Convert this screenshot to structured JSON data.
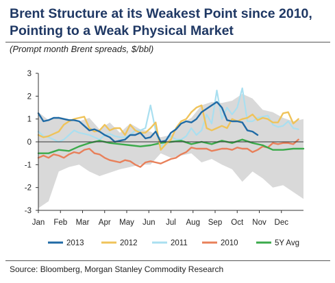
{
  "header": {
    "title_line1": "Brent Structure at its Weakest Point since 2010,",
    "title_line2": "Pointing to a Weak Physical Market",
    "subtitle": "(Prompt month Brent spreads, $/bbl)"
  },
  "footer": {
    "source": "Source: Bloomberg, Morgan Stanley Commodity Research"
  },
  "chart_data": {
    "type": "line",
    "title": "Brent Structure at its Weakest Point since 2010, Pointing to a Weak Physical Market",
    "subtitle": "(Prompt month Brent spreads, $/bbl)",
    "xlabel": "",
    "ylabel": "",
    "x_months": [
      "Jan",
      "Feb",
      "Mar",
      "Apr",
      "May",
      "Jun",
      "Jul",
      "Aug",
      "Sep",
      "Oct",
      "Nov",
      "Dec"
    ],
    "xlim": [
      0,
      52
    ],
    "ylim": [
      -3,
      3
    ],
    "yticks": [
      "-3",
      "-2",
      "-1",
      "0",
      "1",
      "2",
      "3"
    ],
    "grid": false,
    "legend_position": "bottom",
    "colors": {
      "2013": "#1f6aa5",
      "2012": "#efc35a",
      "2011": "#a9dff0",
      "2010": "#e8805a",
      "5Y Avg": "#3aaa4a",
      "range": "#d9d9d9",
      "axis": "#333333"
    },
    "range_band": {
      "name": "5Y range",
      "x": [
        0,
        2,
        4,
        6,
        8,
        10,
        12,
        14,
        16,
        18,
        20,
        22,
        24,
        26,
        28,
        30,
        32,
        34,
        36,
        38,
        40,
        42,
        44,
        46,
        48,
        50,
        52
      ],
      "upper": [
        1.3,
        0.95,
        1.1,
        1.0,
        0.9,
        1.05,
        0.55,
        0.85,
        0.4,
        0.8,
        0.55,
        0.45,
        0.2,
        0.3,
        0.8,
        1.05,
        1.6,
        1.75,
        1.7,
        1.8,
        2.1,
        1.9,
        1.4,
        1.3,
        1.05,
        0.9,
        1.0
      ],
      "lower": [
        -2.9,
        -2.6,
        -1.3,
        -1.1,
        -1.0,
        -1.3,
        -1.5,
        -1.35,
        -1.2,
        -1.1,
        -1.0,
        -1.0,
        -0.5,
        -0.7,
        -0.6,
        -0.5,
        -0.9,
        -0.75,
        -1.0,
        -1.2,
        -1.75,
        -1.3,
        -1.6,
        -2.0,
        -1.9,
        -2.2,
        -2.5
      ]
    },
    "series": [
      {
        "name": "2013",
        "x": [
          0,
          1,
          2,
          3,
          4,
          5,
          6,
          7,
          8,
          9,
          10,
          11,
          12,
          13,
          14,
          15,
          16,
          17,
          18,
          19,
          20,
          21,
          22,
          23,
          24,
          25,
          26,
          27,
          28,
          29,
          30,
          31,
          32,
          33,
          34,
          35,
          36,
          37,
          38,
          39,
          40,
          41,
          42,
          43
        ],
        "values": [
          1.25,
          0.9,
          0.95,
          1.05,
          1.05,
          1.0,
          0.95,
          0.95,
          0.9,
          0.7,
          0.5,
          0.55,
          0.45,
          0.3,
          0.2,
          0.0,
          0.05,
          0.1,
          0.3,
          0.3,
          0.4,
          0.15,
          0.2,
          0.45,
          0.0,
          0.05,
          0.4,
          0.55,
          0.8,
          0.9,
          0.85,
          1.0,
          1.3,
          1.45,
          1.6,
          1.75,
          1.5,
          0.95,
          0.9,
          0.9,
          0.85,
          0.5,
          0.45,
          0.3
        ]
      },
      {
        "name": "2012",
        "x": [
          0,
          1,
          2,
          3,
          4,
          5,
          6,
          7,
          8,
          9,
          10,
          11,
          12,
          13,
          14,
          15,
          16,
          17,
          18,
          19,
          20,
          21,
          22,
          23,
          24,
          25,
          26,
          27,
          28,
          29,
          30,
          31,
          32,
          33,
          34,
          35,
          36,
          37,
          38,
          39,
          40,
          41,
          42,
          43,
          44,
          45,
          46,
          47,
          48,
          49,
          50,
          51
        ],
        "values": [
          0.3,
          0.2,
          0.25,
          0.35,
          0.45,
          0.75,
          0.9,
          1.0,
          1.05,
          1.1,
          0.6,
          0.45,
          0.5,
          0.75,
          0.5,
          0.6,
          0.6,
          0.3,
          0.75,
          0.5,
          0.4,
          0.4,
          0.6,
          0.85,
          -0.35,
          -0.1,
          0.1,
          0.6,
          0.9,
          1.0,
          1.3,
          1.5,
          1.6,
          0.6,
          0.5,
          0.6,
          0.7,
          0.6,
          1.0,
          0.9,
          1.0,
          1.05,
          1.2,
          0.95,
          1.05,
          1.0,
          0.85,
          0.85,
          1.25,
          1.3,
          0.8,
          1.0
        ]
      },
      {
        "name": "2011",
        "x": [
          0,
          1,
          2,
          3,
          4,
          5,
          6,
          7,
          8,
          9,
          10,
          11,
          12,
          13,
          14,
          15,
          16,
          17,
          18,
          19,
          20,
          21,
          22,
          23,
          24,
          25,
          26,
          27,
          28,
          29,
          30,
          31,
          32,
          33,
          34,
          35,
          36,
          37,
          38,
          39,
          40,
          41,
          42,
          43,
          44,
          45,
          46,
          47,
          48,
          49,
          50,
          51
        ],
        "values": [
          0.45,
          0.25,
          0.2,
          0.1,
          0.0,
          0.1,
          0.3,
          0.5,
          0.4,
          0.35,
          0.3,
          0.2,
          0.1,
          0.3,
          0.35,
          0.25,
          0.2,
          0.2,
          0.3,
          0.5,
          0.5,
          0.6,
          1.6,
          0.5,
          -0.25,
          0.1,
          0.25,
          0.1,
          0.1,
          0.25,
          0.6,
          0.3,
          0.5,
          1.2,
          0.8,
          2.25,
          1.0,
          1.5,
          1.2,
          1.5,
          2.35,
          0.9,
          0.9,
          1.05,
          1.1,
          1.15,
          0.75,
          0.65,
          0.7,
          0.9,
          0.6,
          0.55
        ]
      },
      {
        "name": "2010",
        "x": [
          0,
          1,
          2,
          3,
          4,
          5,
          6,
          7,
          8,
          9,
          10,
          11,
          12,
          13,
          14,
          15,
          16,
          17,
          18,
          19,
          20,
          21,
          22,
          23,
          24,
          25,
          26,
          27,
          28,
          29,
          30,
          31,
          32,
          33,
          34,
          35,
          36,
          37,
          38,
          39,
          40,
          41,
          42,
          43,
          44,
          45,
          46,
          47,
          48,
          49,
          50,
          51
        ],
        "values": [
          -0.7,
          -0.6,
          -0.7,
          -0.55,
          -0.6,
          -0.7,
          -0.55,
          -0.45,
          -0.5,
          -0.35,
          -0.3,
          -0.5,
          -0.55,
          -0.7,
          -0.8,
          -0.85,
          -0.9,
          -0.8,
          -0.85,
          -1.0,
          -1.1,
          -0.9,
          -0.85,
          -0.9,
          -0.95,
          -0.85,
          -0.75,
          -0.7,
          -0.55,
          -0.45,
          -0.25,
          -0.3,
          -0.3,
          -0.3,
          -0.4,
          -0.35,
          -0.3,
          -0.3,
          -0.35,
          -0.25,
          -0.3,
          -0.3,
          -0.45,
          -0.35,
          -0.2,
          -0.25,
          -0.05,
          -0.1,
          -0.05,
          -0.05,
          -0.1,
          0.1
        ]
      },
      {
        "name": "5Y Avg",
        "x": [
          0,
          2,
          4,
          6,
          8,
          10,
          12,
          14,
          16,
          18,
          20,
          22,
          24,
          26,
          28,
          30,
          32,
          34,
          36,
          38,
          40,
          42,
          44,
          46,
          48,
          50,
          52
        ],
        "values": [
          -0.5,
          -0.5,
          -0.35,
          -0.4,
          -0.2,
          -0.05,
          0.05,
          -0.05,
          -0.1,
          -0.15,
          -0.2,
          -0.15,
          -0.05,
          0.0,
          0.05,
          -0.1,
          0.0,
          -0.1,
          0.05,
          -0.05,
          0.1,
          -0.05,
          -0.15,
          -0.35,
          -0.35,
          -0.3,
          -0.3
        ]
      }
    ]
  }
}
